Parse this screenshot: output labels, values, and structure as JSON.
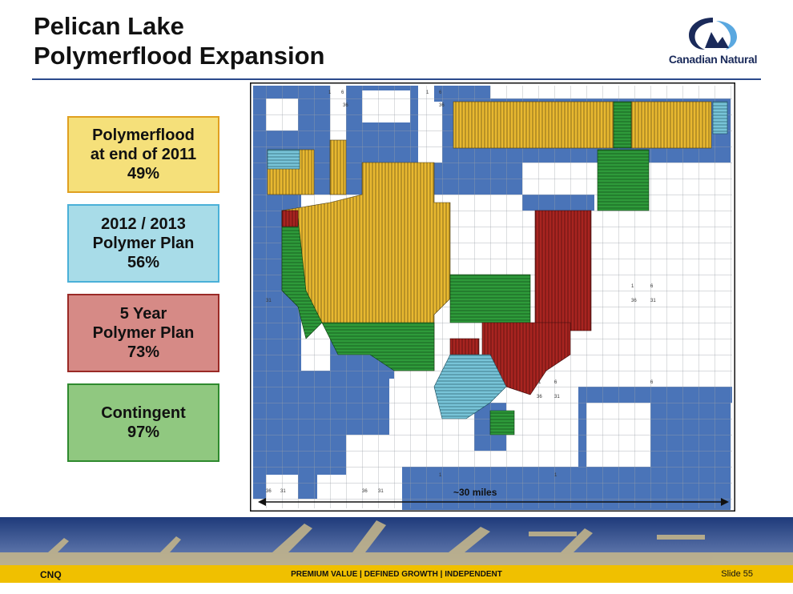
{
  "slide": {
    "title_line1": "Pelican Lake",
    "title_line2": "Polymerflood Expansion",
    "slide_number": "Slide 55"
  },
  "logo": {
    "text": "Canadian Natural",
    "icon": "canadian-natural-logo"
  },
  "legend": [
    {
      "label": "Polymerflood\nat end of 2011\n49%",
      "color": "#f5e07a"
    },
    {
      "label": "2012 / 2013\nPolymer Plan\n56%",
      "color": "#a8dce8"
    },
    {
      "label": "5 Year\nPolymer Plan\n73%",
      "color": "#d68a86"
    },
    {
      "label": "Contingent\n97%",
      "color": "#90c880"
    }
  ],
  "map": {
    "scale_label": "~30 miles",
    "grid_labels": [
      "1",
      "6",
      "36",
      "31"
    ],
    "colors": {
      "lease": "#4a74b8",
      "polymer_2011": "#e8b830",
      "plan_2012_2013": "#78c4d8",
      "plan_5yr": "#a82420",
      "contingent": "#2e9a3a",
      "grid": "#9aa0a8"
    }
  },
  "footer": {
    "ticker": "CNQ",
    "tagline": "PREMIUM VALUE  |  DEFINED GROWTH  |  INDEPENDENT"
  }
}
